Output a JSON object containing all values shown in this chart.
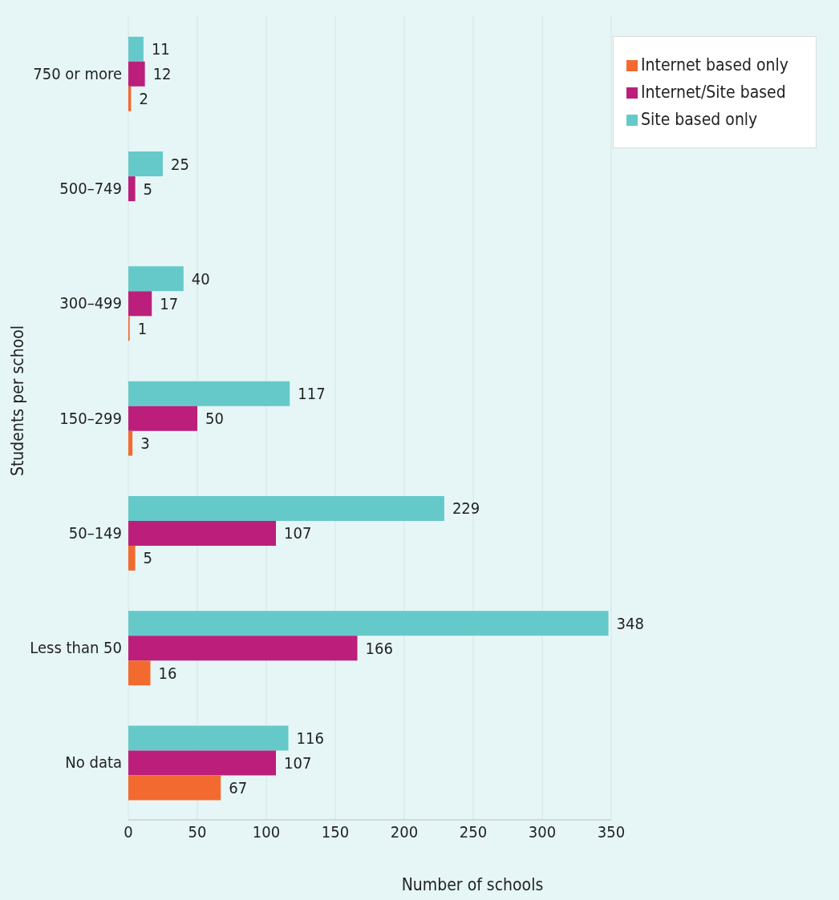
{
  "chart_data": {
    "type": "bar",
    "orientation": "horizontal",
    "xlabel": "Number of schools",
    "ylabel": "Students per school",
    "categories": [
      "750 or more",
      "500–749",
      "300–499",
      "150–299",
      "50–149",
      "Less than 50",
      "No data"
    ],
    "series": [
      {
        "name": "Site based only",
        "color": "#66c9c9",
        "values": [
          11,
          25,
          40,
          117,
          229,
          348,
          116
        ]
      },
      {
        "name": "Internet/Site based",
        "color": "#bb1f7b",
        "values": [
          12,
          5,
          17,
          50,
          107,
          166,
          107
        ]
      },
      {
        "name": "Internet based only",
        "color": "#f26a30",
        "values": [
          2,
          null,
          1,
          3,
          5,
          16,
          67
        ]
      }
    ],
    "xlim": [
      0,
      350
    ],
    "xticks": [
      0,
      50,
      100,
      150,
      200,
      250,
      300,
      350
    ],
    "grid": "x",
    "legend": "top right",
    "data_labels": true
  }
}
